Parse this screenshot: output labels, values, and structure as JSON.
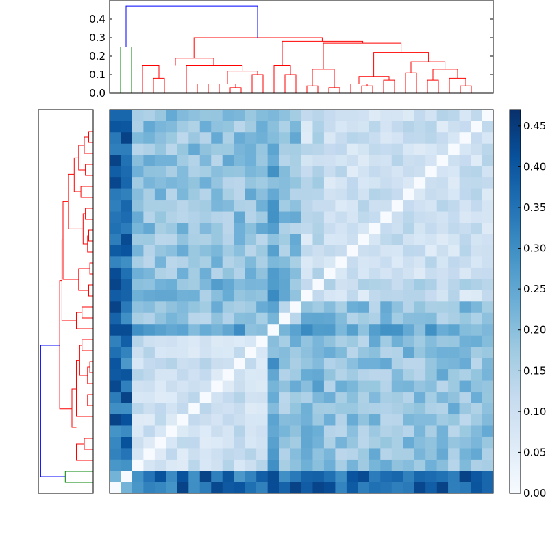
{
  "chart_data": [
    {
      "type": "dendrogram",
      "orientation": "top",
      "ylim": [
        0,
        0.48
      ],
      "yticks": [
        {
          "value": 0.0,
          "label": "0.0"
        },
        {
          "value": 0.1,
          "label": "0.1"
        },
        {
          "value": 0.2,
          "label": "0.2"
        },
        {
          "value": 0.3,
          "label": "0.3"
        },
        {
          "value": 0.4,
          "label": "0.4"
        }
      ],
      "leaf_count": 34,
      "colors": {
        "root": "#0000ff",
        "cluster_a": "#008000",
        "cluster_b": "#ff0000"
      },
      "links": [
        {
          "x": [
            0.5,
            0.5,
            1.5,
            1.5
          ],
          "y": [
            0.0,
            0.25,
            0.25,
            0.0
          ],
          "color": "#008000"
        },
        {
          "x": [
            3.5,
            3.5,
            4.5,
            4.5
          ],
          "y": [
            0.0,
            0.08,
            0.08,
            0.0
          ],
          "color": "#ff0000"
        },
        {
          "x": [
            2.5,
            2.5,
            4.0,
            4.0
          ],
          "y": [
            0.0,
            0.15,
            0.15,
            0.08
          ],
          "color": "#ff0000"
        },
        {
          "x": [
            7.5,
            7.5,
            8.5,
            8.5
          ],
          "y": [
            0.0,
            0.05,
            0.05,
            0.0
          ],
          "color": "#ff0000"
        },
        {
          "x": [
            10.5,
            10.5,
            11.5,
            11.5
          ],
          "y": [
            0.0,
            0.03,
            0.03,
            0.0
          ],
          "color": "#ff0000"
        },
        {
          "x": [
            9.5,
            9.5,
            11.0,
            11.0
          ],
          "y": [
            0.0,
            0.05,
            0.05,
            0.03
          ],
          "color": "#ff0000"
        },
        {
          "x": [
            12.5,
            12.5,
            13.5,
            13.5
          ],
          "y": [
            0.0,
            0.1,
            0.1,
            0.0
          ],
          "color": "#ff0000"
        },
        {
          "x": [
            10.25,
            10.25,
            13.0,
            13.0
          ],
          "y": [
            0.05,
            0.12,
            0.12,
            0.1
          ],
          "color": "#ff0000"
        },
        {
          "x": [
            6.5,
            6.5,
            11.6,
            11.6
          ],
          "y": [
            0.0,
            0.15,
            0.15,
            0.12
          ],
          "color": "#ff0000"
        },
        {
          "x": [
            5.5,
            5.5,
            9.0,
            9.0
          ],
          "y": [
            0.15,
            0.19,
            0.19,
            0.15
          ],
          "color": "#ff0000"
        },
        {
          "x": [
            15.5,
            15.5,
            16.5,
            16.5
          ],
          "y": [
            0.0,
            0.1,
            0.1,
            0.0
          ],
          "color": "#ff0000"
        },
        {
          "x": [
            14.5,
            14.5,
            16.0,
            16.0
          ],
          "y": [
            0.0,
            0.15,
            0.15,
            0.1
          ],
          "color": "#ff0000"
        },
        {
          "x": [
            17.5,
            17.5,
            18.5,
            18.5
          ],
          "y": [
            0.0,
            0.04,
            0.04,
            0.0
          ],
          "color": "#ff0000"
        },
        {
          "x": [
            19.5,
            19.5,
            20.5,
            20.5
          ],
          "y": [
            0.0,
            0.03,
            0.03,
            0.0
          ],
          "color": "#ff0000"
        },
        {
          "x": [
            18.0,
            18.0,
            20.0,
            20.0
          ],
          "y": [
            0.04,
            0.13,
            0.13,
            0.03
          ],
          "color": "#ff0000"
        },
        {
          "x": [
            22.5,
            22.5,
            23.5,
            23.5
          ],
          "y": [
            0.0,
            0.04,
            0.04,
            0.0
          ],
          "color": "#ff0000"
        },
        {
          "x": [
            21.5,
            21.5,
            23.0,
            23.0
          ],
          "y": [
            0.0,
            0.05,
            0.05,
            0.04
          ],
          "color": "#ff0000"
        },
        {
          "x": [
            24.5,
            24.5,
            25.5,
            25.5
          ],
          "y": [
            0.0,
            0.07,
            0.07,
            0.0
          ],
          "color": "#ff0000"
        },
        {
          "x": [
            22.25,
            22.25,
            25.0,
            25.0
          ],
          "y": [
            0.05,
            0.09,
            0.09,
            0.07
          ],
          "color": "#ff0000"
        },
        {
          "x": [
            26.5,
            26.5,
            27.5,
            27.5
          ],
          "y": [
            0.0,
            0.11,
            0.11,
            0.0
          ],
          "color": "#ff0000"
        },
        {
          "x": [
            28.5,
            28.5,
            29.5,
            29.5
          ],
          "y": [
            0.0,
            0.07,
            0.07,
            0.0
          ],
          "color": "#ff0000"
        },
        {
          "x": [
            31.5,
            31.5,
            32.5,
            32.5
          ],
          "y": [
            0.0,
            0.04,
            0.04,
            0.0
          ],
          "color": "#ff0000"
        },
        {
          "x": [
            30.5,
            30.5,
            32.0,
            32.0
          ],
          "y": [
            0.0,
            0.08,
            0.08,
            0.04
          ],
          "color": "#ff0000"
        },
        {
          "x": [
            29.0,
            29.0,
            31.25,
            31.25
          ],
          "y": [
            0.07,
            0.13,
            0.13,
            0.08
          ],
          "color": "#ff0000"
        },
        {
          "x": [
            27.0,
            27.0,
            30.1,
            30.1
          ],
          "y": [
            0.11,
            0.17,
            0.17,
            0.13
          ],
          "color": "#ff0000"
        },
        {
          "x": [
            23.6,
            23.6,
            28.6,
            28.6
          ],
          "y": [
            0.09,
            0.22,
            0.22,
            0.17
          ],
          "color": "#ff0000"
        },
        {
          "x": [
            19.0,
            19.0,
            26.1,
            26.1
          ],
          "y": [
            0.13,
            0.27,
            0.27,
            0.22
          ],
          "color": "#ff0000"
        },
        {
          "x": [
            15.25,
            15.25,
            22.6,
            22.6
          ],
          "y": [
            0.15,
            0.28,
            0.28,
            0.27
          ],
          "color": "#ff0000"
        },
        {
          "x": [
            7.2,
            7.2,
            18.9,
            18.9
          ],
          "y": [
            0.19,
            0.3,
            0.3,
            0.28
          ],
          "color": "#ff0000"
        },
        {
          "x": [
            1.0,
            1.0,
            13.0,
            13.0
          ],
          "y": [
            0.25,
            0.47,
            0.47,
            0.3
          ],
          "color": "#0000ff"
        }
      ]
    },
    {
      "type": "dendrogram",
      "orientation": "left",
      "leaf_count": 34,
      "colors": {
        "root": "#0000ff",
        "cluster_a": "#008000",
        "cluster_b": "#ff0000"
      }
    },
    {
      "type": "heatmap",
      "rows": 34,
      "cols": 34,
      "colormap": "Blues",
      "vmin": 0.0,
      "vmax": 0.47,
      "colorbar_ticks": [
        {
          "value": 0.0,
          "label": "0.00"
        },
        {
          "value": 0.05,
          "label": "0.05"
        },
        {
          "value": 0.1,
          "label": "0.10"
        },
        {
          "value": 0.15,
          "label": "0.15"
        },
        {
          "value": 0.2,
          "label": "0.20"
        },
        {
          "value": 0.25,
          "label": "0.25"
        },
        {
          "value": 0.3,
          "label": "0.30"
        },
        {
          "value": 0.35,
          "label": "0.35"
        },
        {
          "value": 0.4,
          "label": "0.40"
        },
        {
          "value": 0.45,
          "label": "0.45"
        }
      ],
      "clusters": [
        {
          "start": 0,
          "end": 1,
          "base": 0.22
        },
        {
          "start": 2,
          "end": 13,
          "base": 0.1
        },
        {
          "start": 14,
          "end": 16,
          "base": 0.16
        },
        {
          "start": 17,
          "end": 33,
          "base": 0.1
        }
      ],
      "between_cluster_base": 0.19,
      "outlier_base": 0.36
    }
  ]
}
